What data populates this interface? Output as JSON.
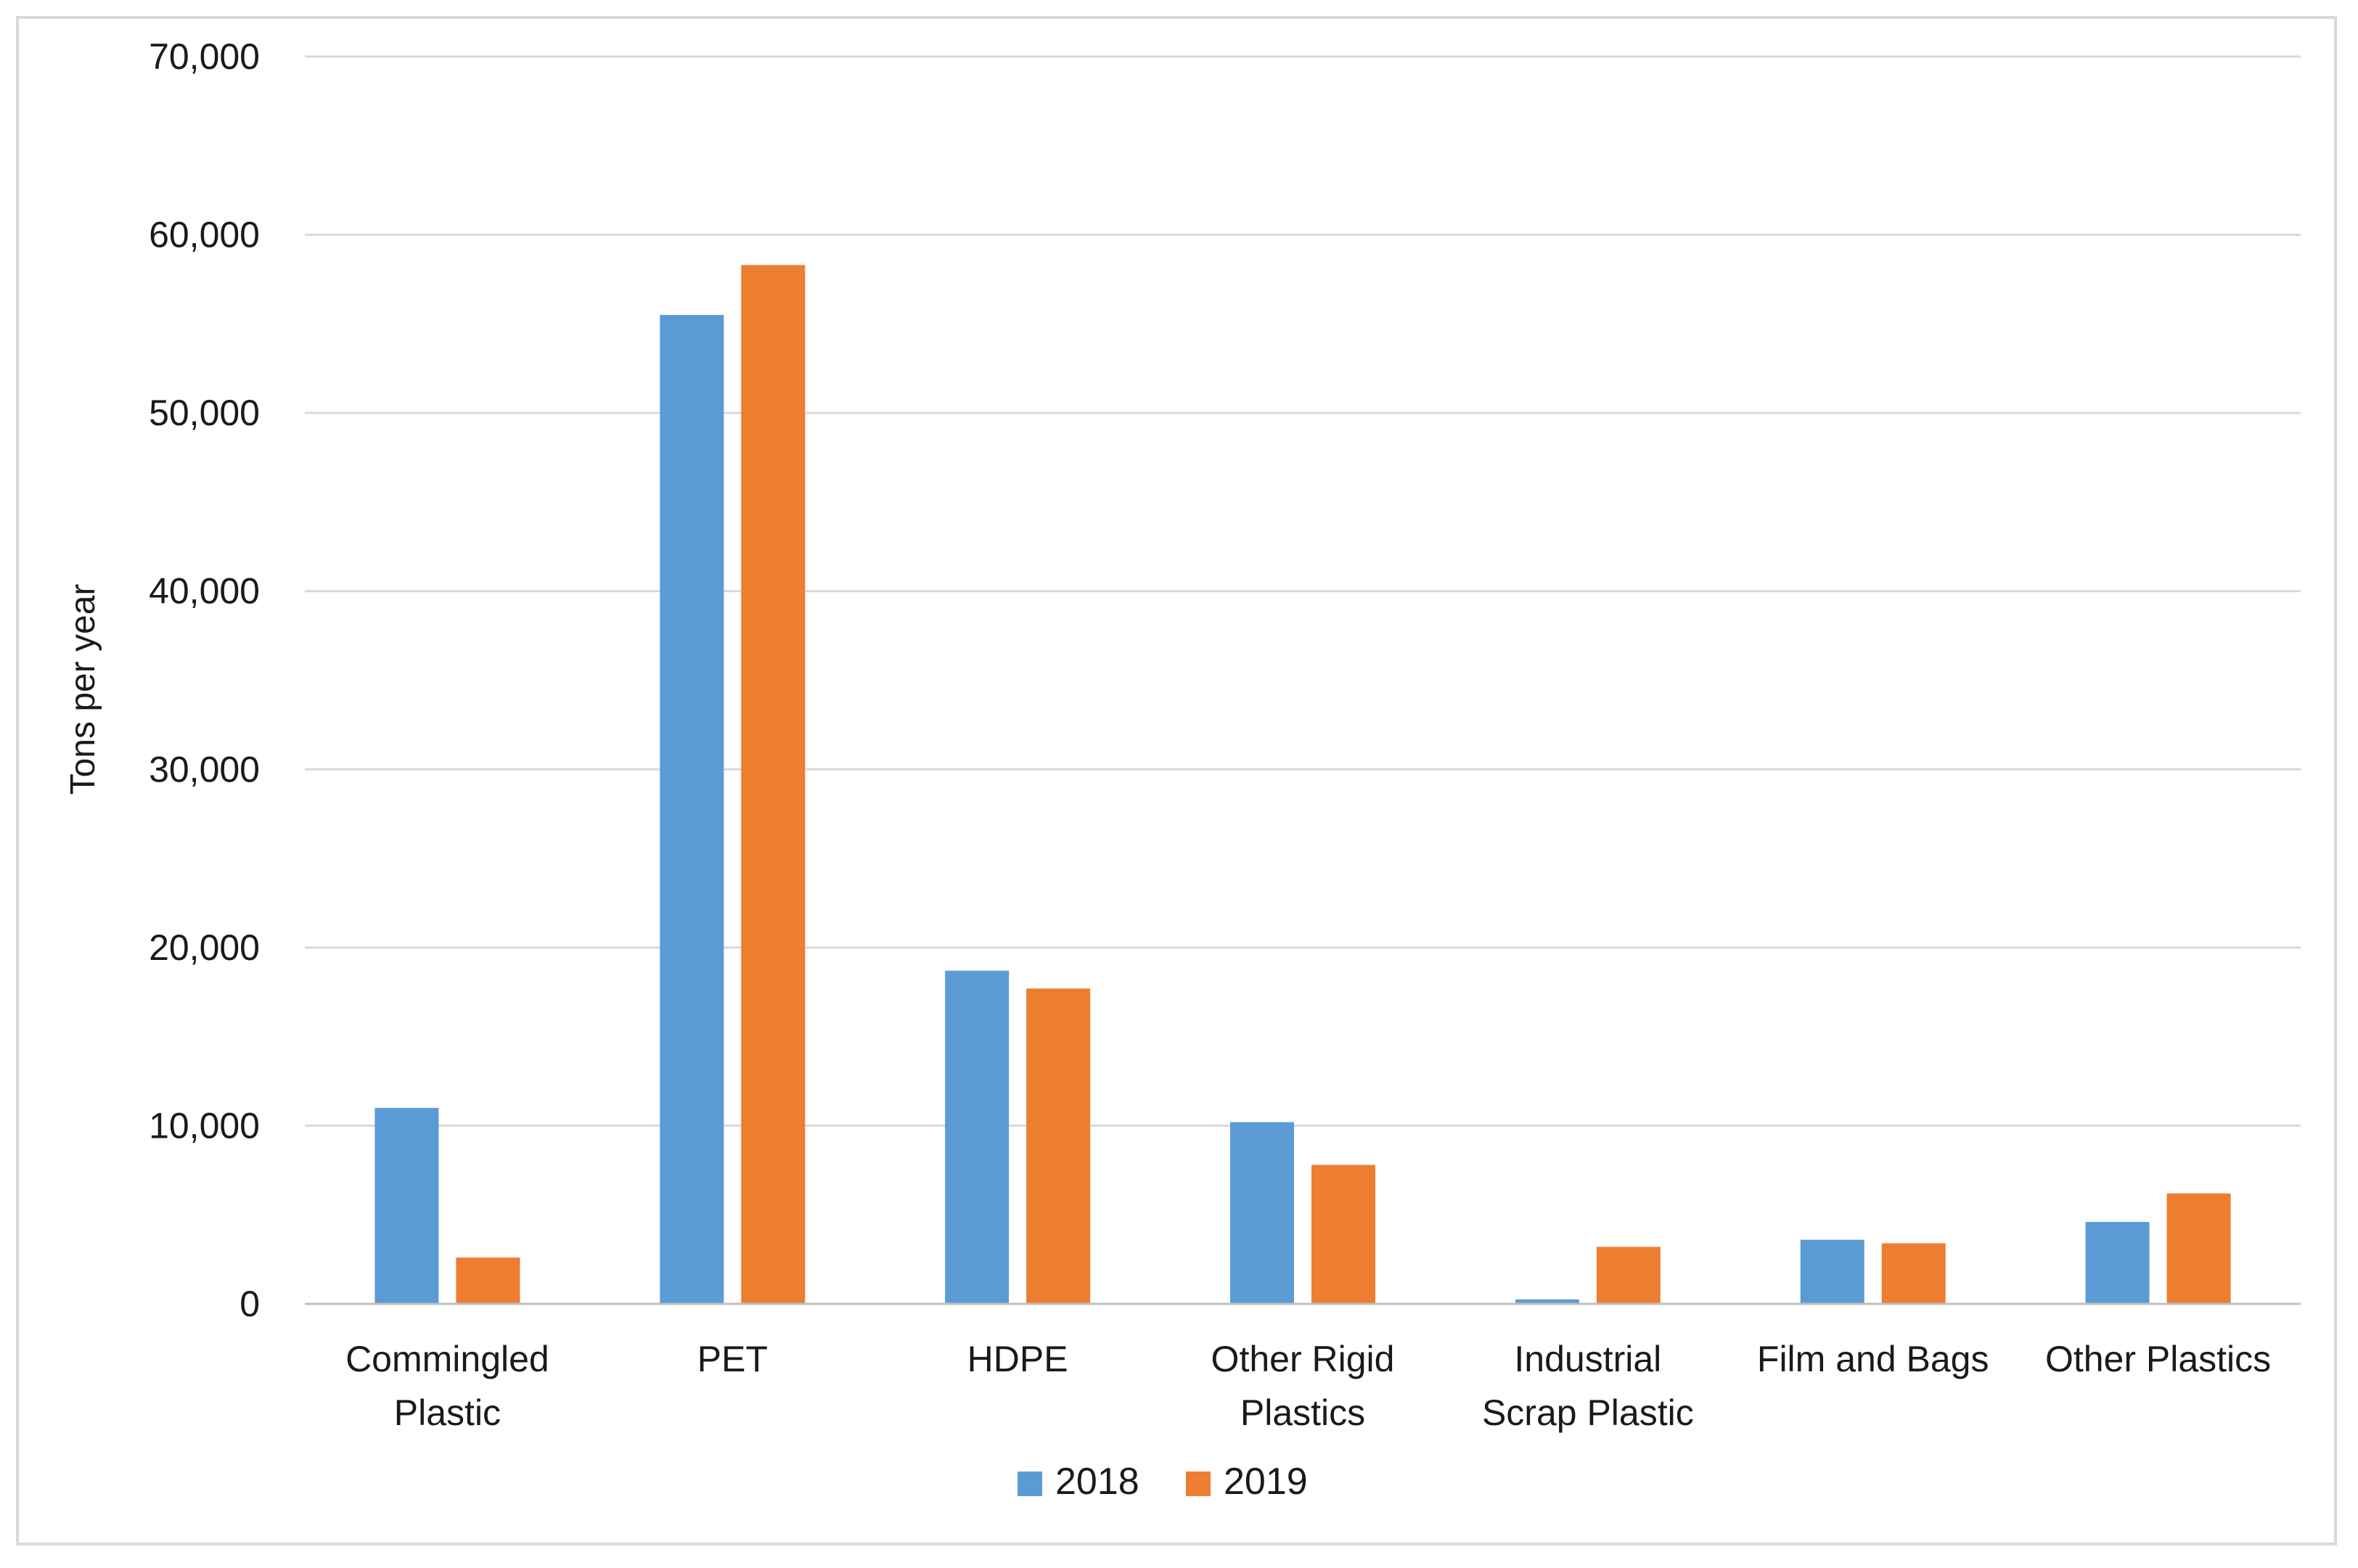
{
  "chart_data": {
    "type": "bar",
    "title": "",
    "xlabel": "",
    "ylabel": "Tons per year",
    "ylim": [
      0,
      70000
    ],
    "yticks": [
      0,
      10000,
      20000,
      30000,
      40000,
      50000,
      60000,
      70000
    ],
    "ytick_labels": [
      "0",
      "10,000",
      "20,000",
      "30,000",
      "40,000",
      "50,000",
      "60,000",
      "70,000"
    ],
    "grid": true,
    "legend_position": "bottom-center",
    "categories": [
      [
        "Commingled",
        "Plastic"
      ],
      [
        "PET"
      ],
      [
        "HDPE"
      ],
      [
        "Other Rigid",
        "Plastics"
      ],
      [
        "Industrial",
        "Scrap Plastic"
      ],
      [
        "Film and Bags"
      ],
      [
        "Other Plastics"
      ]
    ],
    "series": [
      {
        "name": "2018",
        "color": "#5b9bd5",
        "values": [
          11000,
          55500,
          18700,
          10200,
          250,
          3600,
          4600
        ]
      },
      {
        "name": "2019",
        "color": "#ed7d31",
        "values": [
          2600,
          58300,
          17700,
          7800,
          3200,
          3400,
          6200
        ]
      }
    ],
    "gridline_color": "#d9d9d9",
    "axis_color": "#bfbfbf"
  }
}
